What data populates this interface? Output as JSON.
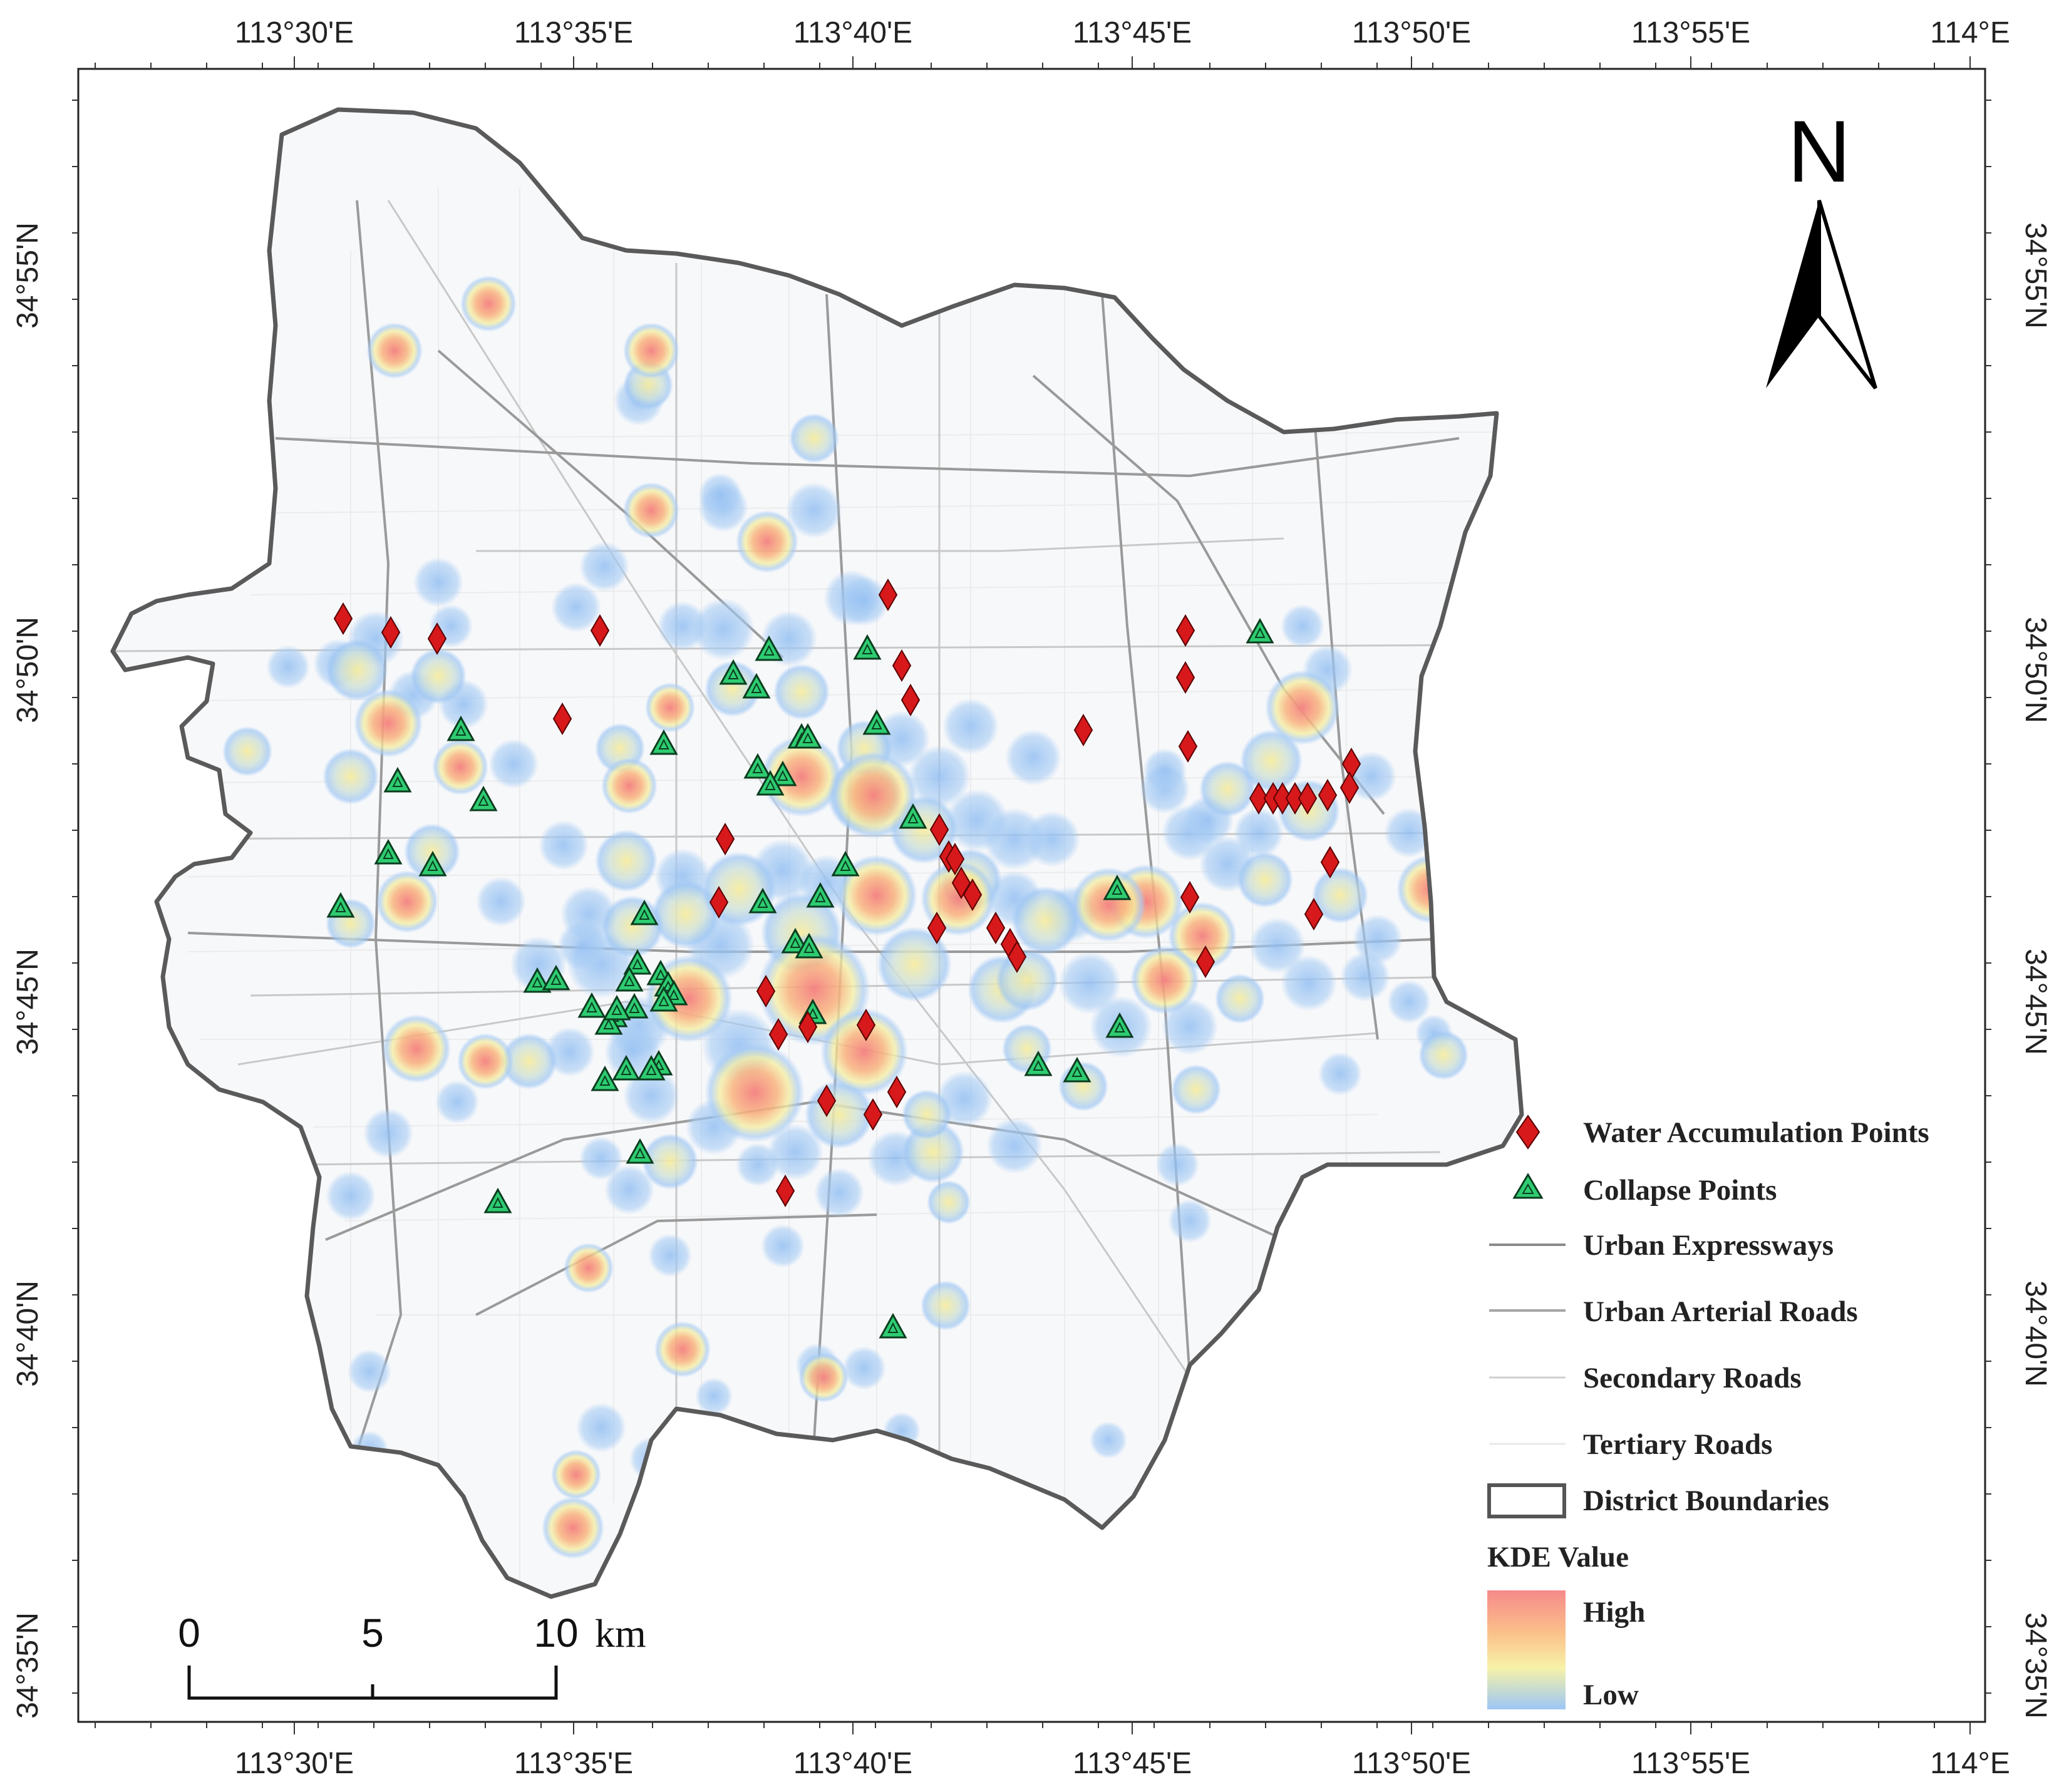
{
  "top_axis_labels": [
    "113°30'E",
    "113°35'E",
    "113°40'E",
    "113°45'E",
    "113°50'E",
    "113°55'E",
    "114°E"
  ],
  "bottom_axis_labels": [
    "113°30'E",
    "113°35'E",
    "113°40'E",
    "113°45'E",
    "113°50'E",
    "113°55'E",
    "114°E"
  ],
  "left_axis_labels": [
    "34°55'N",
    "34°50'N",
    "34°45'N",
    "34°40'N",
    "34°35'N"
  ],
  "right_axis_labels": [
    "34°55'N",
    "34°50'N",
    "34°45'N",
    "34°40'N",
    "34°35'N"
  ],
  "north_arrow": {
    "label": "N"
  },
  "scale_bar": {
    "labels": [
      "0",
      "5",
      "10"
    ],
    "unit": "km"
  },
  "legend": {
    "items": [
      {
        "key": "water",
        "label": "Water Accumulation Points",
        "symbol": "red-diamond",
        "color": "#d7191c"
      },
      {
        "key": "collapse",
        "label": "Collapse Points",
        "symbol": "green-triangle",
        "color": "#2ecc71"
      },
      {
        "key": "expressway",
        "label": "Urban Expressways",
        "symbol": "line",
        "color": "#8a8a8a"
      },
      {
        "key": "arterial",
        "label": "Urban Arterial Roads",
        "symbol": "line",
        "color": "#a6a6a6"
      },
      {
        "key": "secondary",
        "label": "Secondary Roads",
        "symbol": "line",
        "color": "#cfcfcf"
      },
      {
        "key": "tertiary",
        "label": "Tertiary Roads",
        "symbol": "line",
        "color": "#e8e8e8"
      },
      {
        "key": "boundary",
        "label": "District Boundaries",
        "symbol": "box",
        "color": "#555555"
      }
    ],
    "kde_title": "KDE Value",
    "kde_high": "High",
    "kde_low": "Low",
    "kde_colors": [
      "#f58a8a",
      "#fbbf8a",
      "#f7f2a8",
      "#9cc6f5"
    ]
  }
}
